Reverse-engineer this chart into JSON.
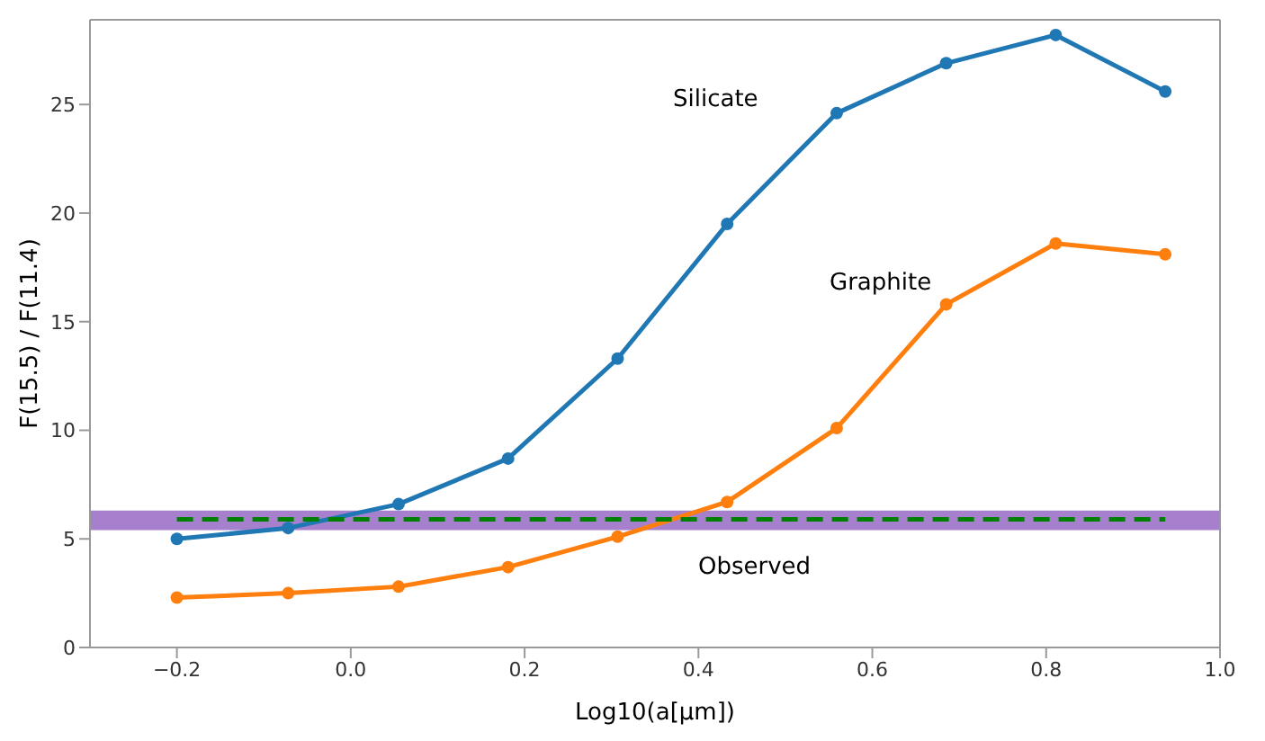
{
  "chart_data": {
    "type": "line",
    "xlabel": "Log10(a[μm])",
    "ylabel": "F(15.5) / F(11.4)",
    "x": [
      -0.2,
      -0.072,
      0.055,
      0.181,
      0.307,
      0.433,
      0.559,
      0.685,
      0.811,
      0.937
    ],
    "series": [
      {
        "color": "#1f77b4",
        "values": [
          5.0,
          5.5,
          6.6,
          8.7,
          13.3,
          19.5,
          24.6,
          26.9,
          28.2,
          25.6
        ],
        "marker": "circle",
        "line_style": "solid"
      },
      {
        "color": "#ff7f0e",
        "values": [
          2.3,
          2.5,
          2.8,
          3.7,
          5.1,
          6.7,
          10.1,
          15.8,
          18.6,
          18.1
        ],
        "marker": "circle",
        "line_style": "solid"
      },
      {
        "type": "line",
        "color": "#008000",
        "x": [
          -0.2,
          0.937
        ],
        "values": [
          5.9,
          5.9
        ],
        "marker": "none",
        "line_style": "dashed"
      }
    ],
    "bands": [
      {
        "axis": "y",
        "from": 5.4,
        "to": 6.3,
        "color": "#a680cc"
      }
    ],
    "annotations": [
      "Silicate",
      "Graphite",
      "Observed"
    ],
    "xlim": [
      -0.3,
      1.0
    ],
    "xticks": [
      -0.2,
      {
        "value": 0,
        "label": "0.0"
      },
      0.2,
      0.4,
      0.6,
      0.8,
      {
        "value": 1,
        "label": "1.0"
      }
    ],
    "ylim": [
      0,
      28.9
    ],
    "yticks": [
      0,
      5,
      10,
      15,
      20,
      25
    ],
    "grid": false,
    "legend": false
  }
}
